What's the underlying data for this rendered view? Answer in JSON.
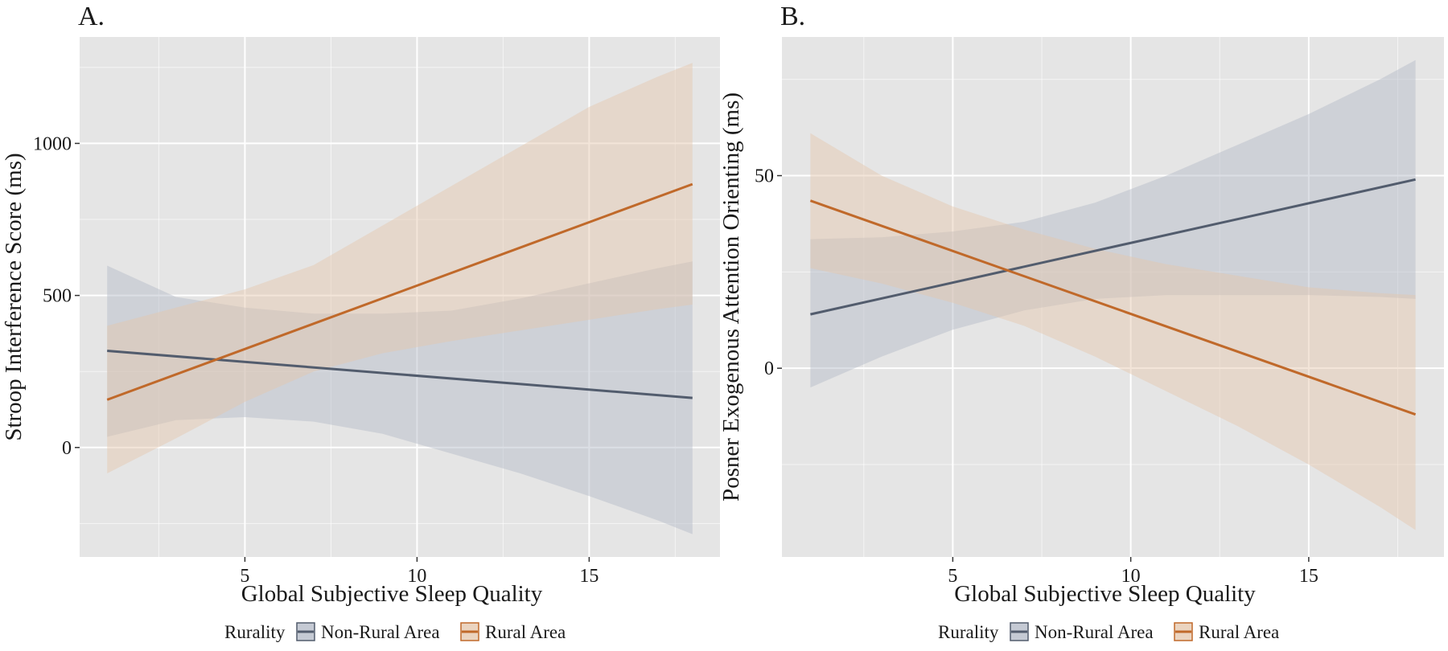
{
  "figure": {
    "legend": {
      "title": "Rurality",
      "entries": [
        {
          "label": "Non-Rural Area",
          "color": "#525c6d",
          "fill": "#b2b8c6"
        },
        {
          "label": "Rural Area",
          "color": "#c0692a",
          "fill": "#e4c6ab"
        }
      ]
    },
    "colors": {
      "panel_background": "#e5e5e5",
      "grid": "#ffffff",
      "non_rural": "#525c6d",
      "rural": "#c0692a"
    }
  },
  "chart_data": [
    {
      "type": "line",
      "panel_label": "A.",
      "xlabel": "Global Subjective Sleep Quality",
      "ylabel": "Stroop Interference Score (ms)",
      "xlim": [
        0.2,
        18.8
      ],
      "ylim": [
        -360,
        1350
      ],
      "xticks": [
        5,
        10,
        15
      ],
      "xtick_labels": [
        "5",
        "10",
        "15"
      ],
      "yticks": [
        0,
        500,
        1000
      ],
      "ytick_labels": [
        "0",
        "500",
        "1000"
      ],
      "grid": true,
      "legend_position": "bottom",
      "series": [
        {
          "name": "Non-Rural Area",
          "x": [
            1,
            18
          ],
          "y": [
            318,
            163
          ],
          "band": {
            "x": [
              1,
              3,
              5,
              7,
              9,
              11,
              13,
              15,
              17,
              18
            ],
            "lower": [
              35,
              90,
              100,
              85,
              45,
              -20,
              -85,
              -160,
              -240,
              -285
            ],
            "upper": [
              598,
              495,
              460,
              440,
              440,
              450,
              490,
              540,
              590,
              612
            ]
          }
        },
        {
          "name": "Rural Area",
          "x": [
            1,
            18
          ],
          "y": [
            157,
            866
          ],
          "band": {
            "x": [
              1,
              3,
              5,
              7,
              9,
              11,
              13,
              15,
              17,
              18
            ],
            "lower": [
              -85,
              30,
              150,
              250,
              310,
              350,
              385,
              420,
              455,
              470
            ],
            "upper": [
              400,
              460,
              520,
              600,
              730,
              860,
              990,
              1120,
              1220,
              1265
            ]
          }
        }
      ]
    },
    {
      "type": "line",
      "panel_label": "B.",
      "xlabel": "Global Subjective Sleep Quality",
      "ylabel": "Posner Exogenous Attention Orienting (ms)",
      "xlim": [
        0.2,
        18.8
      ],
      "ylim": [
        -49,
        86
      ],
      "xticks": [
        5,
        10,
        15
      ],
      "xtick_labels": [
        "5",
        "10",
        "15"
      ],
      "yticks": [
        0,
        50
      ],
      "ytick_labels": [
        "0",
        "50"
      ],
      "grid": true,
      "legend_position": "bottom",
      "series": [
        {
          "name": "Non-Rural Area",
          "x": [
            1,
            18
          ],
          "y": [
            14,
            49
          ],
          "band": {
            "x": [
              1,
              3,
              5,
              7,
              9,
              11,
              13,
              15,
              17,
              18
            ],
            "lower": [
              -5,
              3,
              10,
              15,
              18,
              19,
              19,
              19,
              18.5,
              18
            ],
            "upper": [
              33.5,
              34,
              35.5,
              38,
              43,
              50,
              58,
              66,
              75,
              80
            ]
          }
        },
        {
          "name": "Rural Area",
          "x": [
            1,
            18
          ],
          "y": [
            43.5,
            -12
          ],
          "band": {
            "x": [
              1,
              3,
              5,
              7,
              9,
              11,
              13,
              15,
              17,
              18
            ],
            "lower": [
              26,
              22,
              17,
              11,
              3,
              -6,
              -15,
              -25,
              -36,
              -42
            ],
            "upper": [
              61,
              50,
              42,
              36,
              31,
              27,
              24,
              21,
              19.5,
              19
            ]
          }
        }
      ]
    }
  ]
}
